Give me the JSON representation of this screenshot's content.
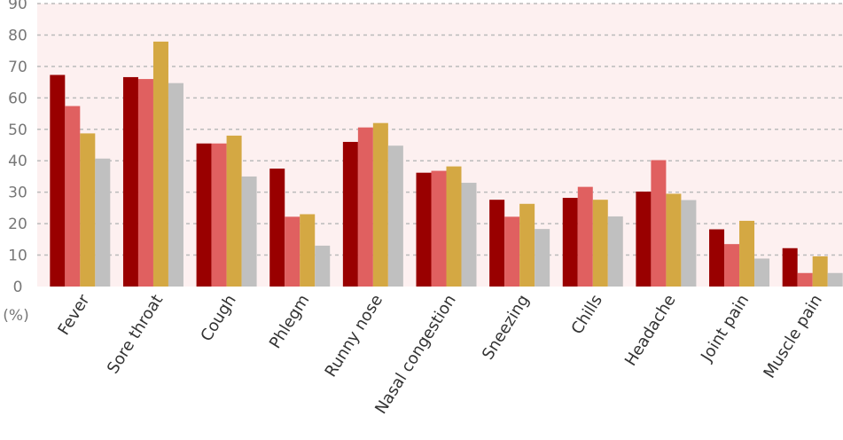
{
  "chart_data": {
    "type": "bar",
    "ylabel": "(%)",
    "ylim": [
      0,
      90
    ],
    "yticks": [
      0,
      10,
      20,
      30,
      40,
      50,
      60,
      70,
      80,
      90
    ],
    "grid": true,
    "background_color": "#fdf0f0",
    "categories": [
      "Fever",
      "Sore throat",
      "Cough",
      "Phlegm",
      "Runny nose",
      "Nasal congestion",
      "Sneezing",
      "Chills",
      "Headache",
      "Joint pain",
      "Muscle pain"
    ],
    "series": [
      {
        "color": "#990000",
        "values": [
          67.3,
          66.6,
          45.5,
          37.5,
          46.0,
          36.2,
          27.6,
          28.2,
          30.2,
          18.2,
          12.2
        ]
      },
      {
        "color": "#e06060",
        "values": [
          57.4,
          66.0,
          45.5,
          22.2,
          50.6,
          36.8,
          22.2,
          31.7,
          40.2,
          13.5,
          4.3
        ]
      },
      {
        "color": "#d4a843",
        "values": [
          48.7,
          77.9,
          48.0,
          23.0,
          52.0,
          38.2,
          26.3,
          27.6,
          29.5,
          20.9,
          9.6
        ]
      },
      {
        "color": "#c0c0c0",
        "values": [
          40.7,
          64.7,
          35.0,
          13.0,
          44.8,
          33.0,
          18.3,
          22.3,
          27.5,
          8.9,
          4.3
        ]
      }
    ]
  }
}
